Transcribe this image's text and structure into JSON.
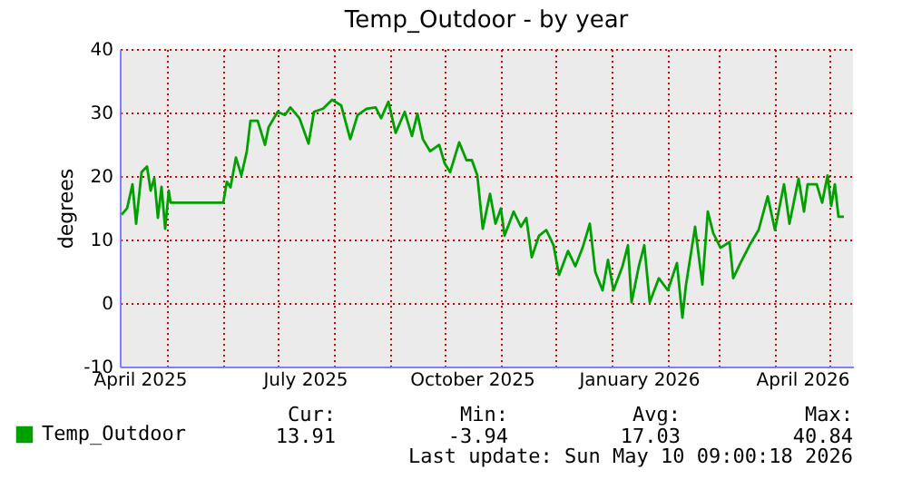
{
  "chart_data": {
    "type": "line",
    "title": "Temp_Outdoor - by year",
    "ylabel": "degrees",
    "x": [
      "2025-04-06",
      "2025-04-09",
      "2025-04-12",
      "2025-04-14",
      "2025-04-17",
      "2025-04-20",
      "2025-04-22",
      "2025-04-24",
      "2025-04-26",
      "2025-04-28",
      "2025-04-30",
      "2025-05-02",
      "2025-05-03",
      "2025-06-01",
      "2025-06-03",
      "2025-06-05",
      "2025-06-08",
      "2025-06-11",
      "2025-06-14",
      "2025-06-16",
      "2025-06-20",
      "2025-06-24",
      "2025-06-26",
      "2025-07-01",
      "2025-07-05",
      "2025-07-08",
      "2025-07-13",
      "2025-07-18",
      "2025-07-21",
      "2025-07-26",
      "2025-07-31",
      "2025-08-05",
      "2025-08-10",
      "2025-08-14",
      "2025-08-19",
      "2025-08-24",
      "2025-08-27",
      "2025-08-31",
      "2025-09-04",
      "2025-09-09",
      "2025-09-13",
      "2025-09-16",
      "2025-09-19",
      "2025-09-23",
      "2025-09-28",
      "2025-10-01",
      "2025-10-04",
      "2025-10-09",
      "2025-10-13",
      "2025-10-16",
      "2025-10-19",
      "2025-10-22",
      "2025-10-26",
      "2025-10-29",
      "2025-11-01",
      "2025-11-03",
      "2025-11-08",
      "2025-11-12",
      "2025-11-15",
      "2025-11-18",
      "2025-11-22",
      "2025-11-26",
      "2025-11-30",
      "2025-12-03",
      "2025-12-08",
      "2025-12-12",
      "2025-12-16",
      "2025-12-20",
      "2025-12-23",
      "2025-12-27",
      "2025-12-30",
      "2026-01-02",
      "2026-01-07",
      "2026-01-10",
      "2026-01-12",
      "2026-01-16",
      "2026-01-19",
      "2026-01-22",
      "2026-01-27",
      "2026-02-01",
      "2026-02-06",
      "2026-02-09",
      "2026-02-11",
      "2026-02-16",
      "2026-02-20",
      "2026-02-23",
      "2026-02-26",
      "2026-03-02",
      "2026-03-07",
      "2026-03-09",
      "2026-03-13",
      "2026-03-18",
      "2026-03-23",
      "2026-03-28",
      "2026-04-01",
      "2026-04-06",
      "2026-04-09",
      "2026-04-14",
      "2026-04-17",
      "2026-04-19",
      "2026-04-24",
      "2026-04-27",
      "2026-04-30",
      "2026-05-02",
      "2026-05-04",
      "2026-05-06",
      "2026-05-09"
    ],
    "series": [
      {
        "name": "Temp_Outdoor",
        "color": "#00a000",
        "values": [
          13.9,
          14.9,
          18.7,
          12.5,
          20.6,
          21.5,
          17.7,
          19.7,
          13.4,
          18.3,
          11.7,
          17.7,
          15.8,
          15.8,
          19.1,
          18.2,
          22.9,
          20.1,
          23.9,
          28.7,
          28.7,
          24.9,
          27.7,
          30.1,
          29.6,
          30.8,
          29.1,
          25.1,
          30.1,
          30.6,
          32.0,
          31.1,
          25.8,
          29.6,
          30.6,
          30.8,
          29.1,
          31.7,
          26.8,
          30.1,
          26.3,
          29.8,
          25.8,
          23.9,
          24.9,
          22.0,
          20.6,
          25.3,
          22.5,
          22.5,
          20.1,
          11.7,
          17.2,
          12.5,
          14.9,
          10.6,
          14.4,
          12.0,
          13.4,
          7.2,
          10.6,
          11.5,
          9.1,
          4.4,
          8.2,
          5.8,
          8.7,
          12.5,
          4.9,
          2.0,
          6.8,
          2.0,
          5.8,
          9.1,
          0.1,
          5.8,
          9.1,
          0.1,
          3.9,
          2.0,
          6.3,
          -2.3,
          2.9,
          12.0,
          2.9,
          14.4,
          11.0,
          8.7,
          9.6,
          3.9,
          6.3,
          9.1,
          11.5,
          16.8,
          11.5,
          18.7,
          12.5,
          19.6,
          14.4,
          18.7,
          18.7,
          15.8,
          20.1,
          15.3,
          18.7,
          13.6,
          13.6
        ]
      }
    ],
    "xlim": [
      "2025-04-05",
      "2026-05-14"
    ],
    "xticks": [
      {
        "value": "2025-04-16",
        "label": "April 2025"
      },
      {
        "value": "2025-05-01",
        "label": null
      },
      {
        "value": "2025-06-01",
        "label": null
      },
      {
        "value": "2025-07-01",
        "label": null
      },
      {
        "value": "2025-07-16",
        "label": "July 2025"
      },
      {
        "value": "2025-08-01",
        "label": null
      },
      {
        "value": "2025-09-01",
        "label": null
      },
      {
        "value": "2025-10-01",
        "label": null
      },
      {
        "value": "2025-10-16",
        "label": "October 2025"
      },
      {
        "value": "2025-11-01",
        "label": null
      },
      {
        "value": "2025-12-01",
        "label": null
      },
      {
        "value": "2026-01-01",
        "label": null
      },
      {
        "value": "2026-01-16",
        "label": "January 2026"
      },
      {
        "value": "2026-02-01",
        "label": null
      },
      {
        "value": "2026-03-01",
        "label": null
      },
      {
        "value": "2026-04-01",
        "label": null
      },
      {
        "value": "2026-04-16",
        "label": "April 2026"
      },
      {
        "value": "2026-05-01",
        "label": null
      }
    ],
    "ylim": [
      -10,
      40
    ],
    "yticks": [
      -10,
      0,
      10,
      20,
      30,
      40
    ],
    "grid": true,
    "legend": "bottom left",
    "marker": "none",
    "line_style": "solid",
    "annotations": [
      "Cur:",
      "13.91",
      "Min:",
      "-3.94",
      "Avg:",
      "17.03",
      "Max:",
      "40.84",
      "Last update: Sun May 10 09:00:18 2026"
    ]
  }
}
